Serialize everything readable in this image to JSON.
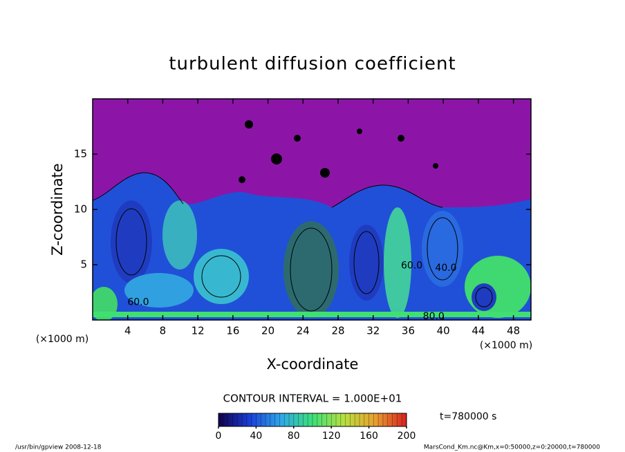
{
  "chart_data": {
    "type": "contour",
    "title": "turbulent diffusion coefficient",
    "xlabel": "X-coordinate",
    "ylabel": "Z-coordinate",
    "x_unit": "(×1000 m)",
    "xlim": [
      0,
      50
    ],
    "xticks": [
      4,
      8,
      12,
      16,
      20,
      24,
      28,
      32,
      36,
      40,
      44,
      48
    ],
    "ylim": [
      0,
      20
    ],
    "yticks": [
      5,
      10,
      15
    ],
    "contour_labels": [
      {
        "text": "60.0",
        "x": 5.2,
        "y": 1.6
      },
      {
        "text": "60.0",
        "x": 36.4,
        "y": 4.9
      },
      {
        "text": "40.0",
        "x": 40.3,
        "y": 4.7
      },
      {
        "text": "80.0",
        "x": 38.9,
        "y": 0.3
      }
    ],
    "contour_interval": "CONTOUR INTERVAL = 1.000E+01",
    "time_label": "t=780000 s",
    "colorbar": {
      "clim": [
        0,
        200
      ],
      "ticks": [
        0,
        40,
        80,
        120,
        160,
        200
      ],
      "colors": [
        "#10004a",
        "#1b3fd8",
        "#2fa8e8",
        "#3ce07a",
        "#b8e040",
        "#e8a030",
        "#d82020"
      ]
    },
    "footer_left": "/usr/bin/gpview  2008-12-18",
    "footer_right": "MarsCond_Km.nc@Km,x=0:50000,z=0:20000,t=780000"
  }
}
